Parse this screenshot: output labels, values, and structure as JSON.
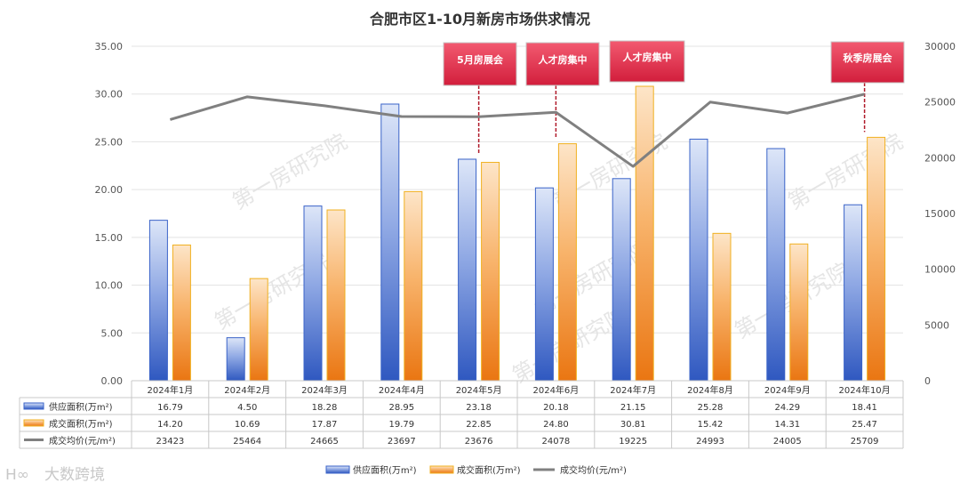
{
  "chart_data": {
    "type": "bar",
    "title": "合肥市区1-10月新房市场供求情况",
    "categories": [
      "2024年1月",
      "2024年2月",
      "2024年3月",
      "2024年4月",
      "2024年5月",
      "2024年6月",
      "2024年7月",
      "2024年8月",
      "2024年9月",
      "2024年10月"
    ],
    "series": [
      {
        "name": "供应面积(万m²)",
        "kind": "bar",
        "axis": "left",
        "color": "#3a63c8",
        "labels": [
          "16.79",
          "4.50",
          "18.28",
          "28.95",
          "23.18",
          "20.18",
          "21.15",
          "25.28",
          "24.29",
          "18.41"
        ],
        "values": [
          16.79,
          4.5,
          18.28,
          28.95,
          23.18,
          20.18,
          21.15,
          25.28,
          24.29,
          18.41
        ]
      },
      {
        "name": "成交面积(万m²)",
        "kind": "bar",
        "axis": "left",
        "color": "#f0841c",
        "labels": [
          "14.20",
          "10.69",
          "17.87",
          "19.79",
          "22.85",
          "24.80",
          "30.81",
          "15.42",
          "14.31",
          "25.47"
        ],
        "values": [
          14.2,
          10.69,
          17.87,
          19.79,
          22.85,
          24.8,
          30.81,
          15.42,
          14.31,
          25.47
        ]
      },
      {
        "name": "成交均价(元/m²)",
        "kind": "line",
        "axis": "right",
        "color": "#7f7f7f",
        "labels": [
          "23423",
          "25464",
          "24665",
          "23697",
          "23676",
          "24078",
          "19225",
          "24993",
          "24005",
          "25709"
        ],
        "values": [
          23423,
          25464,
          24665,
          23697,
          23676,
          24078,
          19225,
          24993,
          24005,
          25709
        ]
      }
    ],
    "y_left": {
      "ylim": [
        0,
        35
      ],
      "ticks": [
        "0.00",
        "5.00",
        "10.00",
        "15.00",
        "20.00",
        "25.00",
        "30.00",
        "35.00"
      ]
    },
    "y_right": {
      "ylim": [
        0,
        30000
      ],
      "ticks": [
        "0",
        "5000",
        "10000",
        "15000",
        "20000",
        "25000",
        "30000"
      ]
    },
    "grid": true,
    "legend_position": "bottom",
    "annotations": [
      {
        "text": "5月房展会",
        "category_index": 4
      },
      {
        "text": "人才房集中",
        "category_index": 5
      },
      {
        "text": "人才房集中",
        "category_index": 6
      },
      {
        "text": "秋季房展会",
        "category_index": 9
      }
    ]
  },
  "watermark": "第一房研究院",
  "logo": "大数跨境"
}
